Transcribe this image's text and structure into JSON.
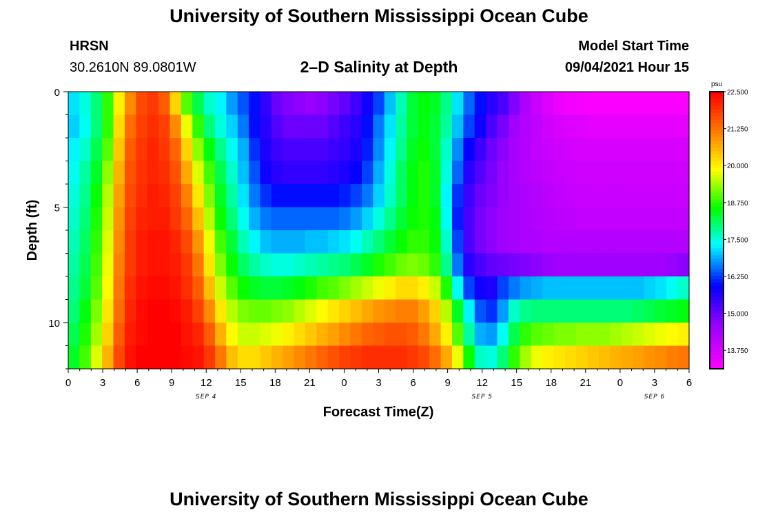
{
  "page": {
    "title_top": "University of Southern Mississippi Ocean Cube",
    "title_bottom": "University of Southern Mississippi Ocean Cube",
    "station": "HRSN",
    "coords": "30.2610N  89.0801W",
    "plot_title": "2–D Salinity at Depth",
    "model_start_label": "Model Start Time",
    "model_start_value": "09/04/2021 Hour 15"
  },
  "chart_data": {
    "type": "heatmap",
    "title": "2–D Salinity at Depth",
    "xlabel": "Forecast Time(Z)",
    "ylabel": "Depth (ft)",
    "x_ticks": [
      "0",
      "3",
      "6",
      "9",
      "12",
      "15",
      "18",
      "21",
      "0",
      "3",
      "6",
      "9",
      "12",
      "15",
      "18",
      "21",
      "0",
      "3",
      "6"
    ],
    "x_range_hours": [
      0,
      54
    ],
    "date_labels": [
      {
        "label": "SEP 4",
        "hour": 12
      },
      {
        "label": "SEP 5",
        "hour": 36
      },
      {
        "label": "SEP 6",
        "hour": 51
      }
    ],
    "y_ticks": [
      "0",
      "5",
      "10"
    ],
    "y_range_ft": [
      0,
      12
    ],
    "depth_levels_ft": [
      0.5,
      1.5,
      2.5,
      3.5,
      4.5,
      5.5,
      6.5,
      7.5,
      8.5,
      9.5,
      10.5,
      11.5
    ],
    "time_hours": [
      0,
      1,
      2,
      3,
      4,
      5,
      6,
      7,
      8,
      9,
      10,
      11,
      12,
      13,
      14,
      15,
      16,
      17,
      18,
      19,
      20,
      21,
      22,
      23,
      24,
      25,
      26,
      27,
      28,
      29,
      30,
      31,
      32,
      33,
      34,
      35,
      36,
      37,
      38,
      39,
      40,
      41,
      42,
      43,
      44,
      45,
      46,
      47,
      48,
      49,
      50,
      51,
      52,
      53,
      54
    ],
    "salinity_psu": [
      [
        17.2,
        17.5,
        18.0,
        18.8,
        20.0,
        21.0,
        21.7,
        21.9,
        21.5,
        20.3,
        19.0,
        18.2,
        17.6,
        17.3,
        16.8,
        16.4,
        16.0,
        15.5,
        15.0,
        14.8,
        14.7,
        14.6,
        14.7,
        14.9,
        15.1,
        15.4,
        15.8,
        16.3,
        17.0,
        17.7,
        18.3,
        18.5,
        18.4,
        17.9,
        17.2,
        16.5,
        16.0,
        15.6,
        15.3,
        14.8,
        14.3,
        13.9,
        13.6,
        13.4,
        13.3,
        13.25,
        13.2,
        13.2,
        13.2,
        13.2,
        13.2,
        13.2,
        13.2,
        13.2,
        13.2
      ],
      [
        17.1,
        17.4,
        18.0,
        18.8,
        20.2,
        21.3,
        21.8,
        22.0,
        21.8,
        21.0,
        19.8,
        18.8,
        18.0,
        17.5,
        17.1,
        16.6,
        16.0,
        15.6,
        15.2,
        15.0,
        15.0,
        15.0,
        15.0,
        15.2,
        15.4,
        15.6,
        16.0,
        16.6,
        17.2,
        17.8,
        18.3,
        18.5,
        18.3,
        17.8,
        17.0,
        16.3,
        15.8,
        15.3,
        14.9,
        14.5,
        14.2,
        14.0,
        13.8,
        13.7,
        13.6,
        13.55,
        13.5,
        13.5,
        13.5,
        13.5,
        13.5,
        13.5,
        13.5,
        13.5,
        13.5
      ],
      [
        17.3,
        17.6,
        18.2,
        19.0,
        20.4,
        21.5,
        21.9,
        22.1,
        21.9,
        21.4,
        20.3,
        19.3,
        18.5,
        17.9,
        17.4,
        16.9,
        16.2,
        15.7,
        15.4,
        15.3,
        15.3,
        15.3,
        15.3,
        15.4,
        15.5,
        15.7,
        16.1,
        16.7,
        17.3,
        17.9,
        18.4,
        18.6,
        18.3,
        17.6,
        16.7,
        15.9,
        15.4,
        15.0,
        14.7,
        14.4,
        14.2,
        14.0,
        13.9,
        13.8,
        13.75,
        13.7,
        13.7,
        13.7,
        13.7,
        13.7,
        13.7,
        13.7,
        13.7,
        13.7,
        13.7
      ],
      [
        17.4,
        17.8,
        18.4,
        19.3,
        20.6,
        21.6,
        21.95,
        22.1,
        22.0,
        21.6,
        20.7,
        19.7,
        18.9,
        18.2,
        17.6,
        17.0,
        16.4,
        15.8,
        15.6,
        15.5,
        15.5,
        15.5,
        15.5,
        15.6,
        15.7,
        15.9,
        16.3,
        16.9,
        17.5,
        18.1,
        18.5,
        18.7,
        18.4,
        17.5,
        16.5,
        15.6,
        15.2,
        14.9,
        14.6,
        14.4,
        14.2,
        14.1,
        14.0,
        13.9,
        13.85,
        13.8,
        13.8,
        13.8,
        13.8,
        13.8,
        13.8,
        13.8,
        13.8,
        13.8,
        13.8
      ],
      [
        17.5,
        17.9,
        18.6,
        19.5,
        20.8,
        21.7,
        22.0,
        22.2,
        22.1,
        21.8,
        21.1,
        20.1,
        19.2,
        18.4,
        17.8,
        17.2,
        16.6,
        16.2,
        16.0,
        16.0,
        16.0,
        16.0,
        16.0,
        16.0,
        16.1,
        16.3,
        16.6,
        17.1,
        17.6,
        18.1,
        18.5,
        18.7,
        18.4,
        17.3,
        16.2,
        15.4,
        15.0,
        14.8,
        14.6,
        14.4,
        14.3,
        14.2,
        14.1,
        14.0,
        13.95,
        13.9,
        13.9,
        13.9,
        13.9,
        13.9,
        13.9,
        13.9,
        13.9,
        13.9,
        13.9
      ],
      [
        17.6,
        18.0,
        18.7,
        19.6,
        20.9,
        21.8,
        22.1,
        22.2,
        22.2,
        21.9,
        21.4,
        20.5,
        19.5,
        18.6,
        18.0,
        17.4,
        16.9,
        16.6,
        16.5,
        16.5,
        16.5,
        16.5,
        16.5,
        16.5,
        16.6,
        16.8,
        17.1,
        17.5,
        17.9,
        18.3,
        18.6,
        18.7,
        18.5,
        17.4,
        16.1,
        15.3,
        14.9,
        14.7,
        14.5,
        14.4,
        14.3,
        14.2,
        14.15,
        14.1,
        14.05,
        14.0,
        14.0,
        14.0,
        14.0,
        14.0,
        14.0,
        14.0,
        14.0,
        14.0,
        14.0
      ],
      [
        17.7,
        18.1,
        18.8,
        19.7,
        21.0,
        21.9,
        22.2,
        22.3,
        22.3,
        22.1,
        21.7,
        20.9,
        19.8,
        18.9,
        18.3,
        17.7,
        17.3,
        17.0,
        16.9,
        16.9,
        16.9,
        17.0,
        17.0,
        17.1,
        17.2,
        17.4,
        17.7,
        18.0,
        18.3,
        18.6,
        18.8,
        18.8,
        18.6,
        17.6,
        16.3,
        15.3,
        14.9,
        14.7,
        14.5,
        14.4,
        14.3,
        14.3,
        14.2,
        14.2,
        14.2,
        14.2,
        14.2,
        14.2,
        14.2,
        14.2,
        14.2,
        14.2,
        14.2,
        14.2,
        14.2
      ],
      [
        17.8,
        18.2,
        18.9,
        19.8,
        21.1,
        21.9,
        22.2,
        22.3,
        22.3,
        22.2,
        21.9,
        21.2,
        20.1,
        19.2,
        18.6,
        18.1,
        17.8,
        17.6,
        17.5,
        17.5,
        17.6,
        17.7,
        17.8,
        17.9,
        18.0,
        18.2,
        18.4,
        18.7,
        18.9,
        19.1,
        19.2,
        19.1,
        18.8,
        17.9,
        16.6,
        15.6,
        15.3,
        15.1,
        15.0,
        14.9,
        14.8,
        14.7,
        14.6,
        14.5,
        14.5,
        14.5,
        14.5,
        14.5,
        14.5,
        14.5,
        14.5,
        14.5,
        14.5,
        14.6,
        14.7
      ],
      [
        17.9,
        18.3,
        19.0,
        19.9,
        21.2,
        22.0,
        22.3,
        22.4,
        22.4,
        22.3,
        22.0,
        21.5,
        20.5,
        19.6,
        19.0,
        18.6,
        18.4,
        18.3,
        18.3,
        18.4,
        18.5,
        18.7,
        18.9,
        19.0,
        19.2,
        19.4,
        19.6,
        19.8,
        20.0,
        20.2,
        20.2,
        20.0,
        19.6,
        18.7,
        17.4,
        16.3,
        15.8,
        15.7,
        16.3,
        16.6,
        16.8,
        16.9,
        17.0,
        17.0,
        17.0,
        17.0,
        17.0,
        17.0,
        17.0,
        17.0,
        17.0,
        17.1,
        17.2,
        17.4,
        17.6
      ],
      [
        18.0,
        18.5,
        19.2,
        20.1,
        21.3,
        22.1,
        22.4,
        22.5,
        22.5,
        22.4,
        22.2,
        21.8,
        21.0,
        20.1,
        19.5,
        19.2,
        19.1,
        19.1,
        19.2,
        19.3,
        19.5,
        19.7,
        19.9,
        20.1,
        20.3,
        20.5,
        20.7,
        20.9,
        21.0,
        21.1,
        21.1,
        20.8,
        20.3,
        19.5,
        18.4,
        17.3,
        16.4,
        16.2,
        16.8,
        17.6,
        17.9,
        18.0,
        18.0,
        18.0,
        18.0,
        18.0,
        18.0,
        18.0,
        18.0,
        18.0,
        18.1,
        18.2,
        18.3,
        18.4,
        18.5
      ],
      [
        18.2,
        18.7,
        19.4,
        20.3,
        21.5,
        22.2,
        22.4,
        22.5,
        22.5,
        22.5,
        22.3,
        22.1,
        21.5,
        20.6,
        19.9,
        19.6,
        19.6,
        19.7,
        19.8,
        20.0,
        20.2,
        20.4,
        20.6,
        20.8,
        21.0,
        21.2,
        21.4,
        21.5,
        21.6,
        21.6,
        21.5,
        21.2,
        20.7,
        20.0,
        19.0,
        17.8,
        16.9,
        16.8,
        17.4,
        18.2,
        18.8,
        19.0,
        19.1,
        19.2,
        19.2,
        19.3,
        19.3,
        19.3,
        19.4,
        19.5,
        19.6,
        19.7,
        19.8,
        19.9,
        20.0
      ],
      [
        18.4,
        18.9,
        19.7,
        20.6,
        21.7,
        22.3,
        22.5,
        22.5,
        22.5,
        22.5,
        22.4,
        22.3,
        21.9,
        21.2,
        20.5,
        20.2,
        20.2,
        20.4,
        20.6,
        20.8,
        21.0,
        21.2,
        21.4,
        21.6,
        21.8,
        21.9,
        22.0,
        22.0,
        22.0,
        22.0,
        21.9,
        21.7,
        21.3,
        20.7,
        19.8,
        18.6,
        17.6,
        17.5,
        18.0,
        18.8,
        19.4,
        19.8,
        20.0,
        20.1,
        20.2,
        20.3,
        20.4,
        20.5,
        20.6,
        20.7,
        20.8,
        20.9,
        21.0,
        21.1,
        21.2
      ]
    ],
    "colorbar": {
      "unit": "psu",
      "min": 13.125,
      "max": 22.5,
      "labels": [
        "22.500",
        "21.250",
        "20.000",
        "18.750",
        "17.500",
        "16.250",
        "15.000",
        "13.750"
      ],
      "label_values": [
        22.5,
        21.25,
        20.0,
        18.75,
        17.5,
        16.25,
        15.0,
        13.75
      ]
    }
  }
}
